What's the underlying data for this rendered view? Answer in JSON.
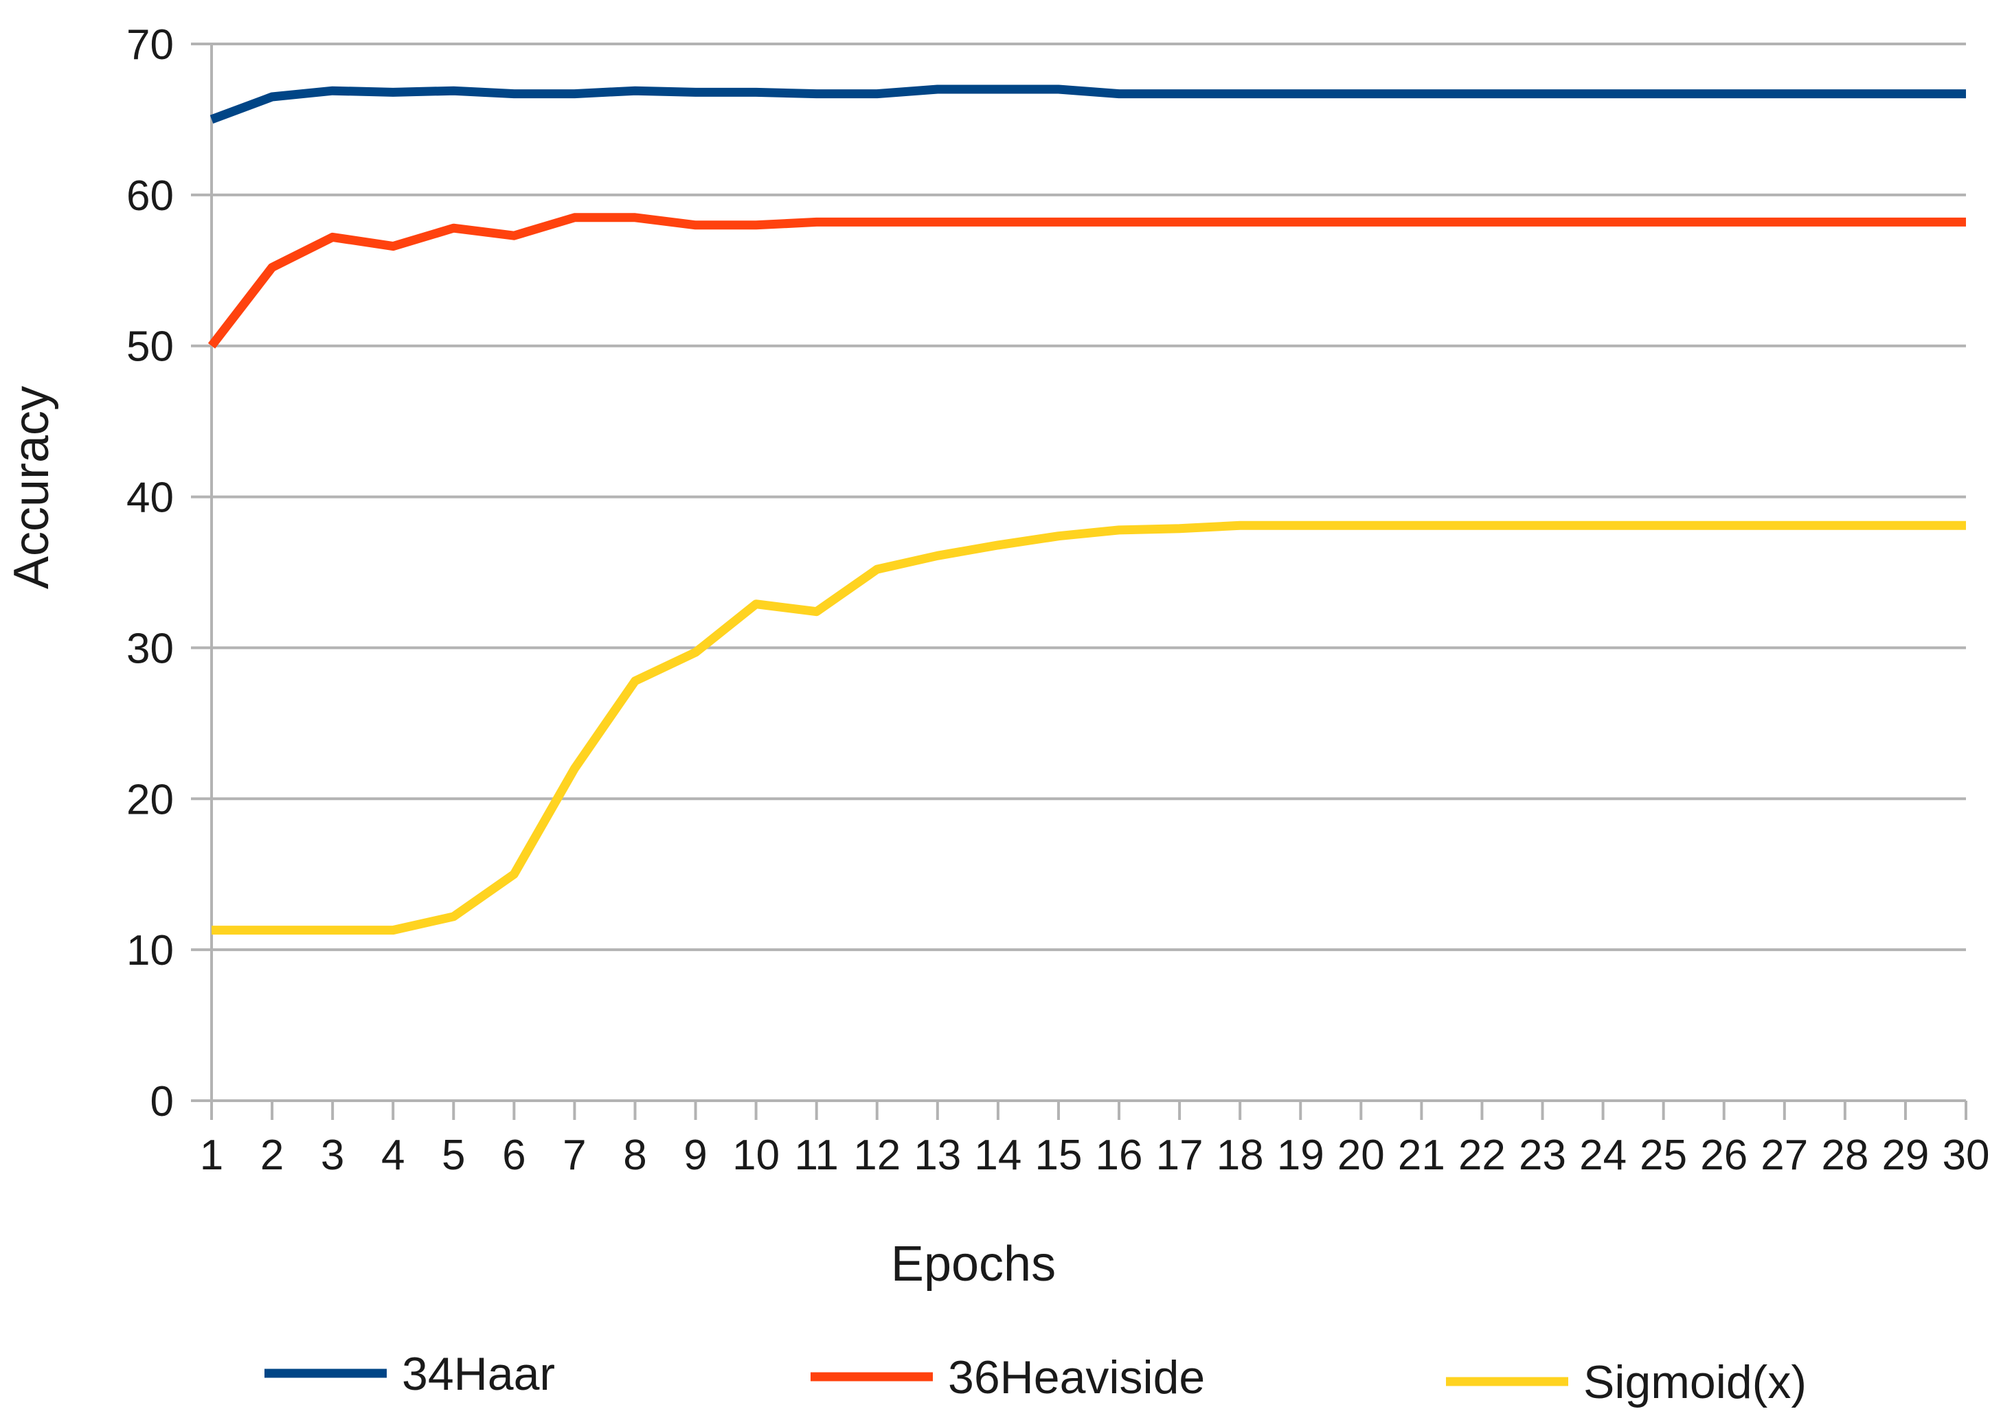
{
  "chart_data": {
    "type": "line",
    "title": "",
    "xlabel": "Epochs",
    "ylabel": "Accuracy",
    "x": [
      1,
      2,
      3,
      4,
      5,
      6,
      7,
      8,
      9,
      10,
      11,
      12,
      13,
      14,
      15,
      16,
      17,
      18,
      19,
      20,
      21,
      22,
      23,
      24,
      25,
      26,
      27,
      28,
      29,
      30
    ],
    "x_tick_labels": [
      "1",
      "2",
      "3",
      "4",
      "5",
      "6",
      "7",
      "8",
      "9",
      "10",
      "11",
      "12",
      "13",
      "14",
      "15",
      "16",
      "17",
      "18",
      "19",
      "20",
      "21",
      "22",
      "23",
      "24",
      "25",
      "26",
      "27",
      "28",
      "29",
      "30"
    ],
    "ylim": [
      0,
      70
    ],
    "y_ticks": [
      0,
      10,
      20,
      30,
      40,
      50,
      60,
      70
    ],
    "y_tick_labels": [
      "0",
      "10",
      "20",
      "30",
      "40",
      "50",
      "60",
      "70"
    ],
    "grid": "horizontal",
    "legend_position": "bottom",
    "series": [
      {
        "name": "34Haar",
        "color": "#004586",
        "values": [
          65.0,
          66.5,
          66.9,
          66.8,
          66.9,
          66.7,
          66.7,
          66.9,
          66.8,
          66.8,
          66.7,
          66.7,
          67.0,
          67.0,
          67.0,
          66.7,
          66.7,
          66.7,
          66.7,
          66.7,
          66.7,
          66.7,
          66.7,
          66.7,
          66.7,
          66.7,
          66.7,
          66.7,
          66.7,
          66.7
        ]
      },
      {
        "name": "36Heaviside",
        "color": "#ff420e",
        "values": [
          50.0,
          55.2,
          57.2,
          56.6,
          57.8,
          57.3,
          58.5,
          58.5,
          58.0,
          58.0,
          58.2,
          58.2,
          58.2,
          58.2,
          58.2,
          58.2,
          58.2,
          58.2,
          58.2,
          58.2,
          58.2,
          58.2,
          58.2,
          58.2,
          58.2,
          58.2,
          58.2,
          58.2,
          58.2,
          58.2
        ]
      },
      {
        "name": "Sigmoid(x)",
        "color": "#ffd320",
        "values": [
          11.3,
          11.3,
          11.3,
          11.3,
          12.2,
          15.0,
          22.0,
          27.8,
          29.7,
          32.9,
          32.4,
          35.2,
          36.1,
          36.8,
          37.4,
          37.8,
          37.9,
          38.1,
          38.1,
          38.1,
          38.1,
          38.1,
          38.1,
          38.1,
          38.1,
          38.1,
          38.1,
          38.1,
          38.1,
          38.1
        ]
      }
    ]
  },
  "colors": {
    "grid": "#b3b3b3",
    "axis": "#b3b3b3",
    "text": "#1a1a1a"
  }
}
